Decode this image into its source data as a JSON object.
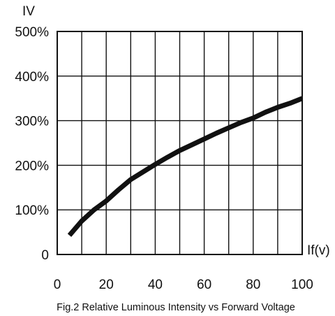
{
  "chart_data": {
    "type": "line",
    "title": "",
    "caption": "Fig.2 Relative Luminous Intensity vs Forward Voltage",
    "xlabel": "If(v)",
    "ylabel": "IV",
    "xlim": [
      0,
      100
    ],
    "ylim": [
      0,
      500
    ],
    "x_ticks": [
      "0",
      "20",
      "40",
      "60",
      "80",
      "100"
    ],
    "y_ticks": [
      "0",
      "100%",
      "200%",
      "300%",
      "400%",
      "500%"
    ],
    "grid": true,
    "legend": "none",
    "line_color": "#111111",
    "series": [
      {
        "x": [
          5,
          10,
          15,
          20,
          25,
          30,
          35,
          40,
          45,
          50,
          55,
          60,
          65,
          70,
          75,
          80,
          85,
          90,
          95,
          100
        ],
        "y": [
          43,
          75,
          100,
          120,
          145,
          168,
          185,
          202,
          218,
          233,
          246,
          259,
          272,
          284,
          296,
          306,
          319,
          330,
          339,
          350
        ]
      }
    ]
  }
}
